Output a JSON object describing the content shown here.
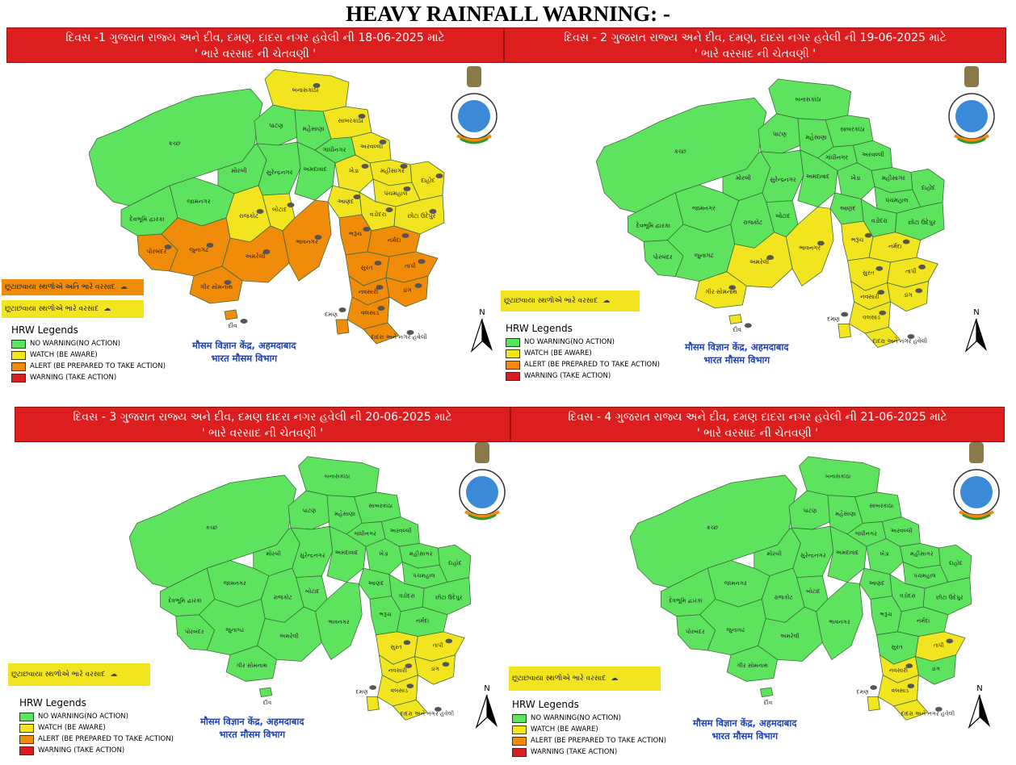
{
  "title": "HEAVY RAINFALL WARNING: -",
  "colors": {
    "no_warning": "#5ee35e",
    "watch": "#f2e51f",
    "alert": "#f08c0a",
    "warning": "#d81e1e",
    "header": "#dc1e1e",
    "imd_text": "#1a3fbf"
  },
  "legend": {
    "title": "HRW Legends",
    "items": [
      {
        "label": "NO WARNING(NO ACTION)",
        "color": "#5ee35e"
      },
      {
        "label": "WATCH (BE AWARE)",
        "color": "#f2e51f"
      },
      {
        "label": "ALERT (BE PREPARED TO TAKE ACTION)",
        "color": "#f08c0a"
      },
      {
        "label": "WARNING (TAKE ACTION)",
        "color": "#d81e1e"
      }
    ]
  },
  "imd": {
    "line1": "मौसम विज्ञान केंद्र, अहमदाबाद",
    "line2": "भारत मौसम विभाग"
  },
  "north": "N",
  "districts": {
    "kutch": "કચ્છ",
    "banaskantha": "બનાસકાંઠા",
    "patan": "પાટણ",
    "mehsana": "મહેસાણા",
    "sabarkantha": "સાબરકાંઠા",
    "aravalli": "અરવલ્લી",
    "gandhinagar": "ગાંધીનગર",
    "mahisagar": "મહીસાગર",
    "morbi": "મોરબી",
    "surendranagar": "સુરેન્દ્રનગર",
    "ahmedabad": "અમદાવાદ",
    "kheda": "ખેડા",
    "panchmahal": "પંચમહાલ",
    "dahod": "દાહોદ",
    "jamnagar": "જામનગર",
    "devbhumi_dwarka": "દેવભૂમિ દ્વારકા",
    "rajkot": "રાજકોટ",
    "botad": "બોટાદ",
    "anand": "આણંદ",
    "vadodara": "વડોદરા",
    "chhota_udepur": "છોટા ઉદેપુર",
    "porbandar": "પોરબંદર",
    "junagadh": "જુનાગઢ",
    "amreli": "અમરેલી",
    "bhavnagar": "ભાવનગર",
    "bharuch": "ભરૂચ",
    "narmada": "નર્મદા",
    "surat": "સુરત",
    "tapi": "તાપી",
    "gir_somnath": "ગીર સોમનાથ",
    "navsari": "નવસારી",
    "dang": "ડાંગ",
    "valsad": "વલસાડ",
    "daman": "દમણ",
    "diu": "દીવ",
    "dnh": "દાદરા અને નગર હવેલી"
  },
  "panels": [
    {
      "id": "day1",
      "header_line1": "દિવસ -1 ગુજરાત રાજ્ય અને દીવ, દમણ, દાદરા નગર હવેલી ની 18-06-2025 માટે",
      "header_line2": "' ભારે વરસાદ ની ચેતવણી '",
      "boxes": [
        {
          "text": "છૂટાછવાયા સ્થળોએ અતિ ભારે વરસાદ",
          "color": "#f08c0a"
        },
        {
          "text": "છૂટાછવાયા સ્થળોએ ભારે વરસાદ",
          "color": "#f2e51f"
        }
      ],
      "watch": [
        "banaskantha",
        "sabarkantha",
        "aravalli",
        "mahisagar",
        "panchmahal",
        "dahod",
        "chhota_udepur",
        "kheda",
        "anand",
        "vadodara",
        "rajkot",
        "botad"
      ],
      "alert": [
        "porbandar",
        "junagadh",
        "amreli",
        "bhavnagar",
        "gir_somnath",
        "bharuch",
        "narmada",
        "surat",
        "tapi",
        "navsari",
        "valsad",
        "dang",
        "daman",
        "diu",
        "dnh"
      ]
    },
    {
      "id": "day2",
      "header_line1": "દિવસ - 2 ગુજરાત રાજ્ય અને દીવ, દમણ, દાદરા નગર હવેલી ની 19-06-2025 માટે",
      "header_line2": "' ભારે વરસાદ ની ચેતવણી '",
      "boxes": [
        {
          "text": "છૂટાછવાયા સ્થળોએ ભારે વરસાદ",
          "color": "#f2e51f"
        }
      ],
      "watch": [
        "amreli",
        "bhavnagar",
        "gir_somnath",
        "bharuch",
        "narmada",
        "surat",
        "tapi",
        "navsari",
        "valsad",
        "dang",
        "daman",
        "diu",
        "dnh"
      ],
      "alert": []
    },
    {
      "id": "day3",
      "header_line1": "દિવસ - 3 ગુજરાત રાજ્ય અને દીવ, દમણ દાદરા નગર હવેલી ની 20-06-2025 માટે",
      "header_line2": "' ભારે વરસાદ ની ચેતવણી '",
      "boxes": [
        {
          "text": "છૂટાછવાયા સ્થળોએ ભારે વરસાદ",
          "color": "#f2e51f"
        }
      ],
      "watch": [
        "surat",
        "tapi",
        "navsari",
        "valsad",
        "dang",
        "daman",
        "dnh"
      ],
      "alert": []
    },
    {
      "id": "day4",
      "header_line1": "દિવસ - 4 ગુજરાત રાજ્ય અને દીવ, દમણ દાદરા નગર હવેલી ની 21-06-2025 માટે",
      "header_line2": "' ભારે વરસાદ ની ચેતવણી '",
      "boxes": [
        {
          "text": "છૂટાછવાયા સ્થળોએ ભારે વરસાદ",
          "color": "#f2e51f"
        }
      ],
      "watch": [
        "tapi",
        "navsari",
        "valsad",
        "daman",
        "dnh"
      ],
      "alert": []
    }
  ]
}
